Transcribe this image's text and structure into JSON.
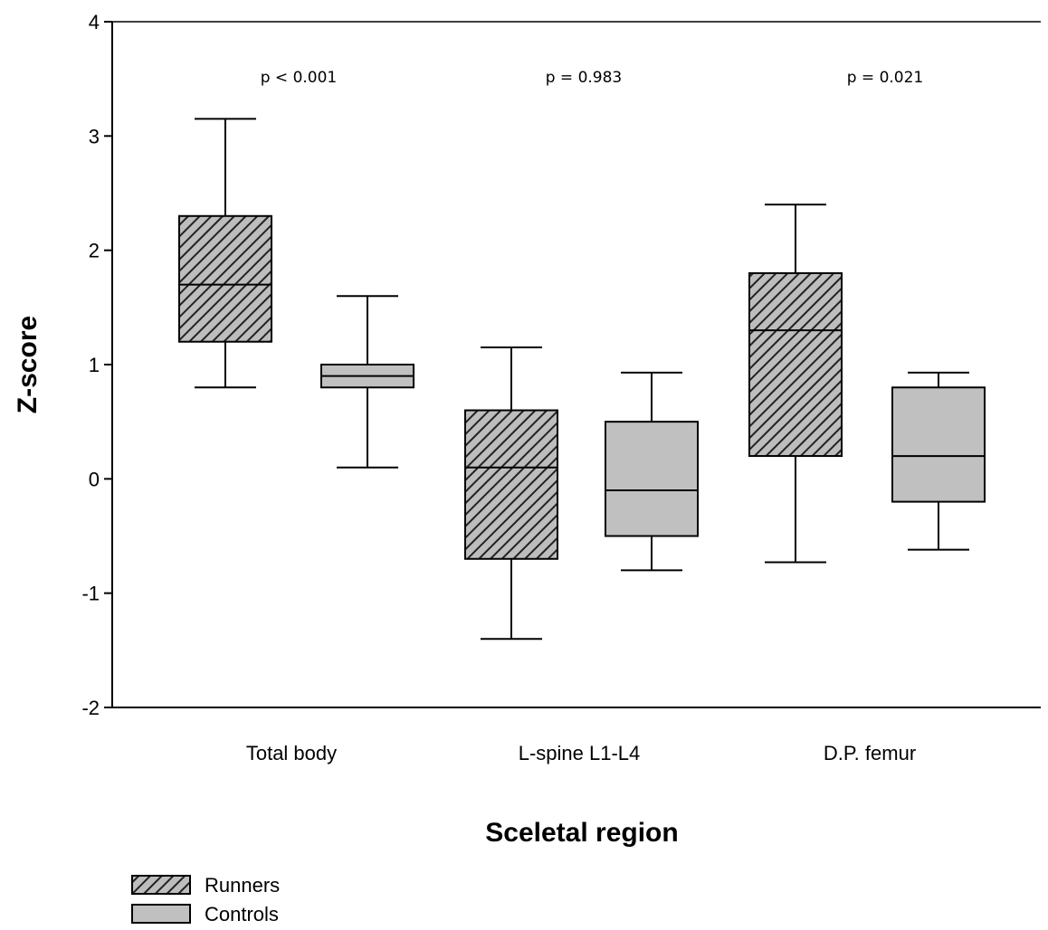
{
  "chart_data": {
    "type": "box",
    "xlabel": "Sceletal region",
    "ylabel": "Z-score",
    "ylim": [
      -2,
      4
    ],
    "yticks": [
      -2,
      -1,
      0,
      1,
      2,
      3,
      4
    ],
    "categories": [
      "Total body",
      "L-spine L1-L4",
      "D.P. femur"
    ],
    "annotations": [
      "p < 0.001",
      "p = 0.983",
      "p = 0.021"
    ],
    "series": [
      {
        "name": "Runners",
        "fill": "hatched",
        "color": "#808080",
        "boxes": [
          {
            "whisker_low": 0.8,
            "q1": 1.2,
            "median": 1.7,
            "q3": 2.3,
            "whisker_high": 3.15
          },
          {
            "whisker_low": -1.4,
            "q1": -0.7,
            "median": 0.1,
            "q3": 0.6,
            "whisker_high": 1.15
          },
          {
            "whisker_low": -0.73,
            "q1": 0.2,
            "median": 1.3,
            "q3": 1.8,
            "whisker_high": 2.4
          }
        ]
      },
      {
        "name": "Controls",
        "fill": "solid",
        "color": "#c0c0c0",
        "boxes": [
          {
            "whisker_low": 0.1,
            "q1": 0.8,
            "median": 0.9,
            "q3": 1.0,
            "whisker_high": 1.6
          },
          {
            "whisker_low": -0.8,
            "q1": -0.5,
            "median": -0.1,
            "q3": 0.5,
            "whisker_high": 0.93
          },
          {
            "whisker_low": -0.62,
            "q1": -0.2,
            "median": 0.2,
            "q3": 0.8,
            "whisker_high": 0.93
          }
        ]
      }
    ],
    "legend_position": "bottom-left"
  }
}
